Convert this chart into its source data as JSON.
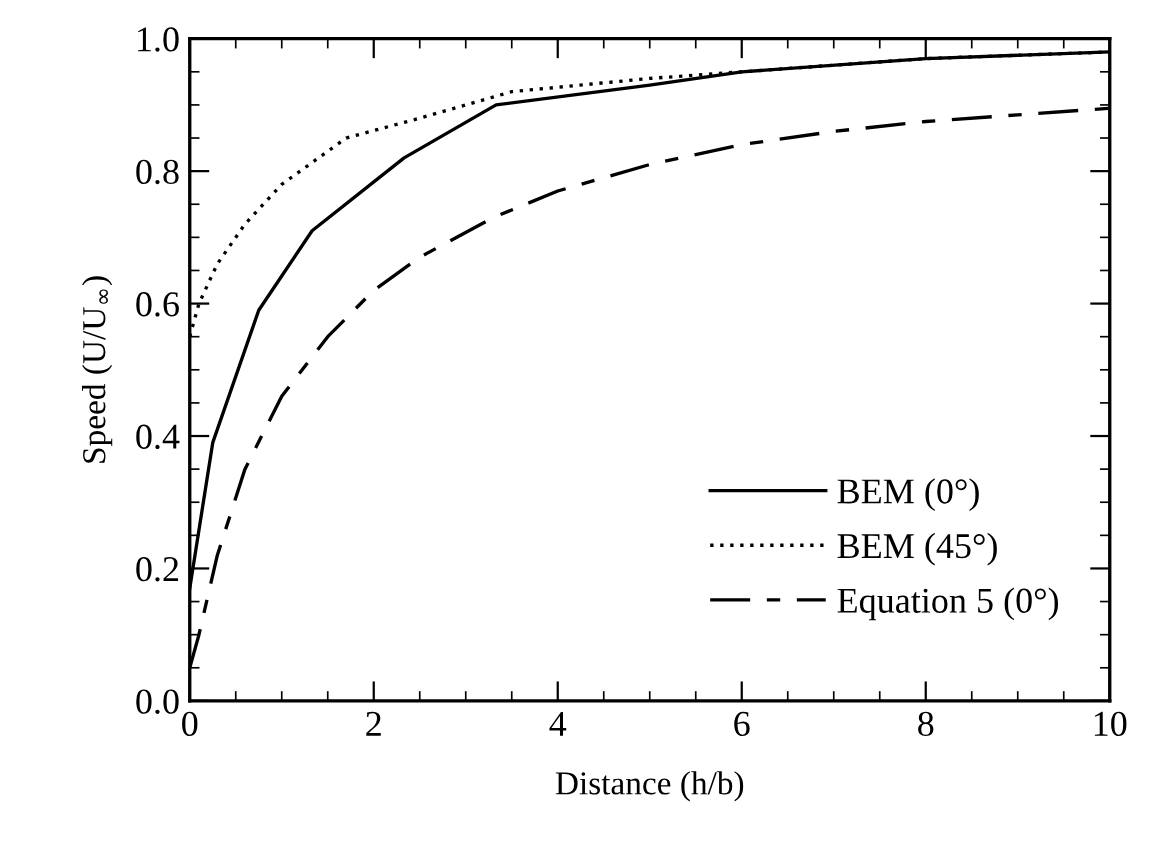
{
  "chart_data": {
    "type": "line",
    "xlabel": "Distance (h/b)",
    "ylabel": "Speed (U/U$_{∞}$)",
    "xlim": [
      0,
      10
    ],
    "ylim": [
      0,
      1.0
    ],
    "xticks": [
      0,
      2,
      4,
      6,
      8,
      10
    ],
    "yticks": [
      {
        "value": 0,
        "label": "0.0"
      },
      0.2,
      0.4,
      0.6,
      0.8,
      {
        "value": 1.0,
        "label": "1.0"
      }
    ],
    "grid": false,
    "legend": "bottom right",
    "series": [
      {
        "name": "BEM (0°)",
        "color": "#000000",
        "line_style": "solid",
        "x": [
          0,
          0.25,
          0.75,
          1.33,
          2.33,
          3.33,
          5,
          6,
          8,
          10
        ],
        "values": [
          0.17,
          0.39,
          0.59,
          0.71,
          0.82,
          0.9,
          0.93,
          0.95,
          0.97,
          0.98
        ]
      },
      {
        "name": "BEM (45°)",
        "color": "#000000",
        "line_style": "dotted",
        "x": [
          0,
          0.1,
          0.3,
          0.6,
          1,
          1.7,
          2.5,
          3.5,
          5,
          6,
          8,
          10
        ],
        "values": [
          0.55,
          0.6,
          0.66,
          0.72,
          0.78,
          0.85,
          0.88,
          0.92,
          0.94,
          0.95,
          0.97,
          0.98
        ]
      },
      {
        "name": "Equation 5 (0°)",
        "color": "#000000",
        "line_style": "dashed",
        "x": [
          0,
          0.1,
          0.3,
          0.6,
          1,
          1.5,
          2,
          2.5,
          3.3,
          4,
          5,
          6,
          7,
          8,
          9,
          10
        ],
        "values": [
          0.05,
          0.1,
          0.22,
          0.35,
          0.46,
          0.55,
          0.62,
          0.67,
          0.73,
          0.77,
          0.81,
          0.84,
          0.86,
          0.875,
          0.885,
          0.895
        ]
      }
    ]
  }
}
